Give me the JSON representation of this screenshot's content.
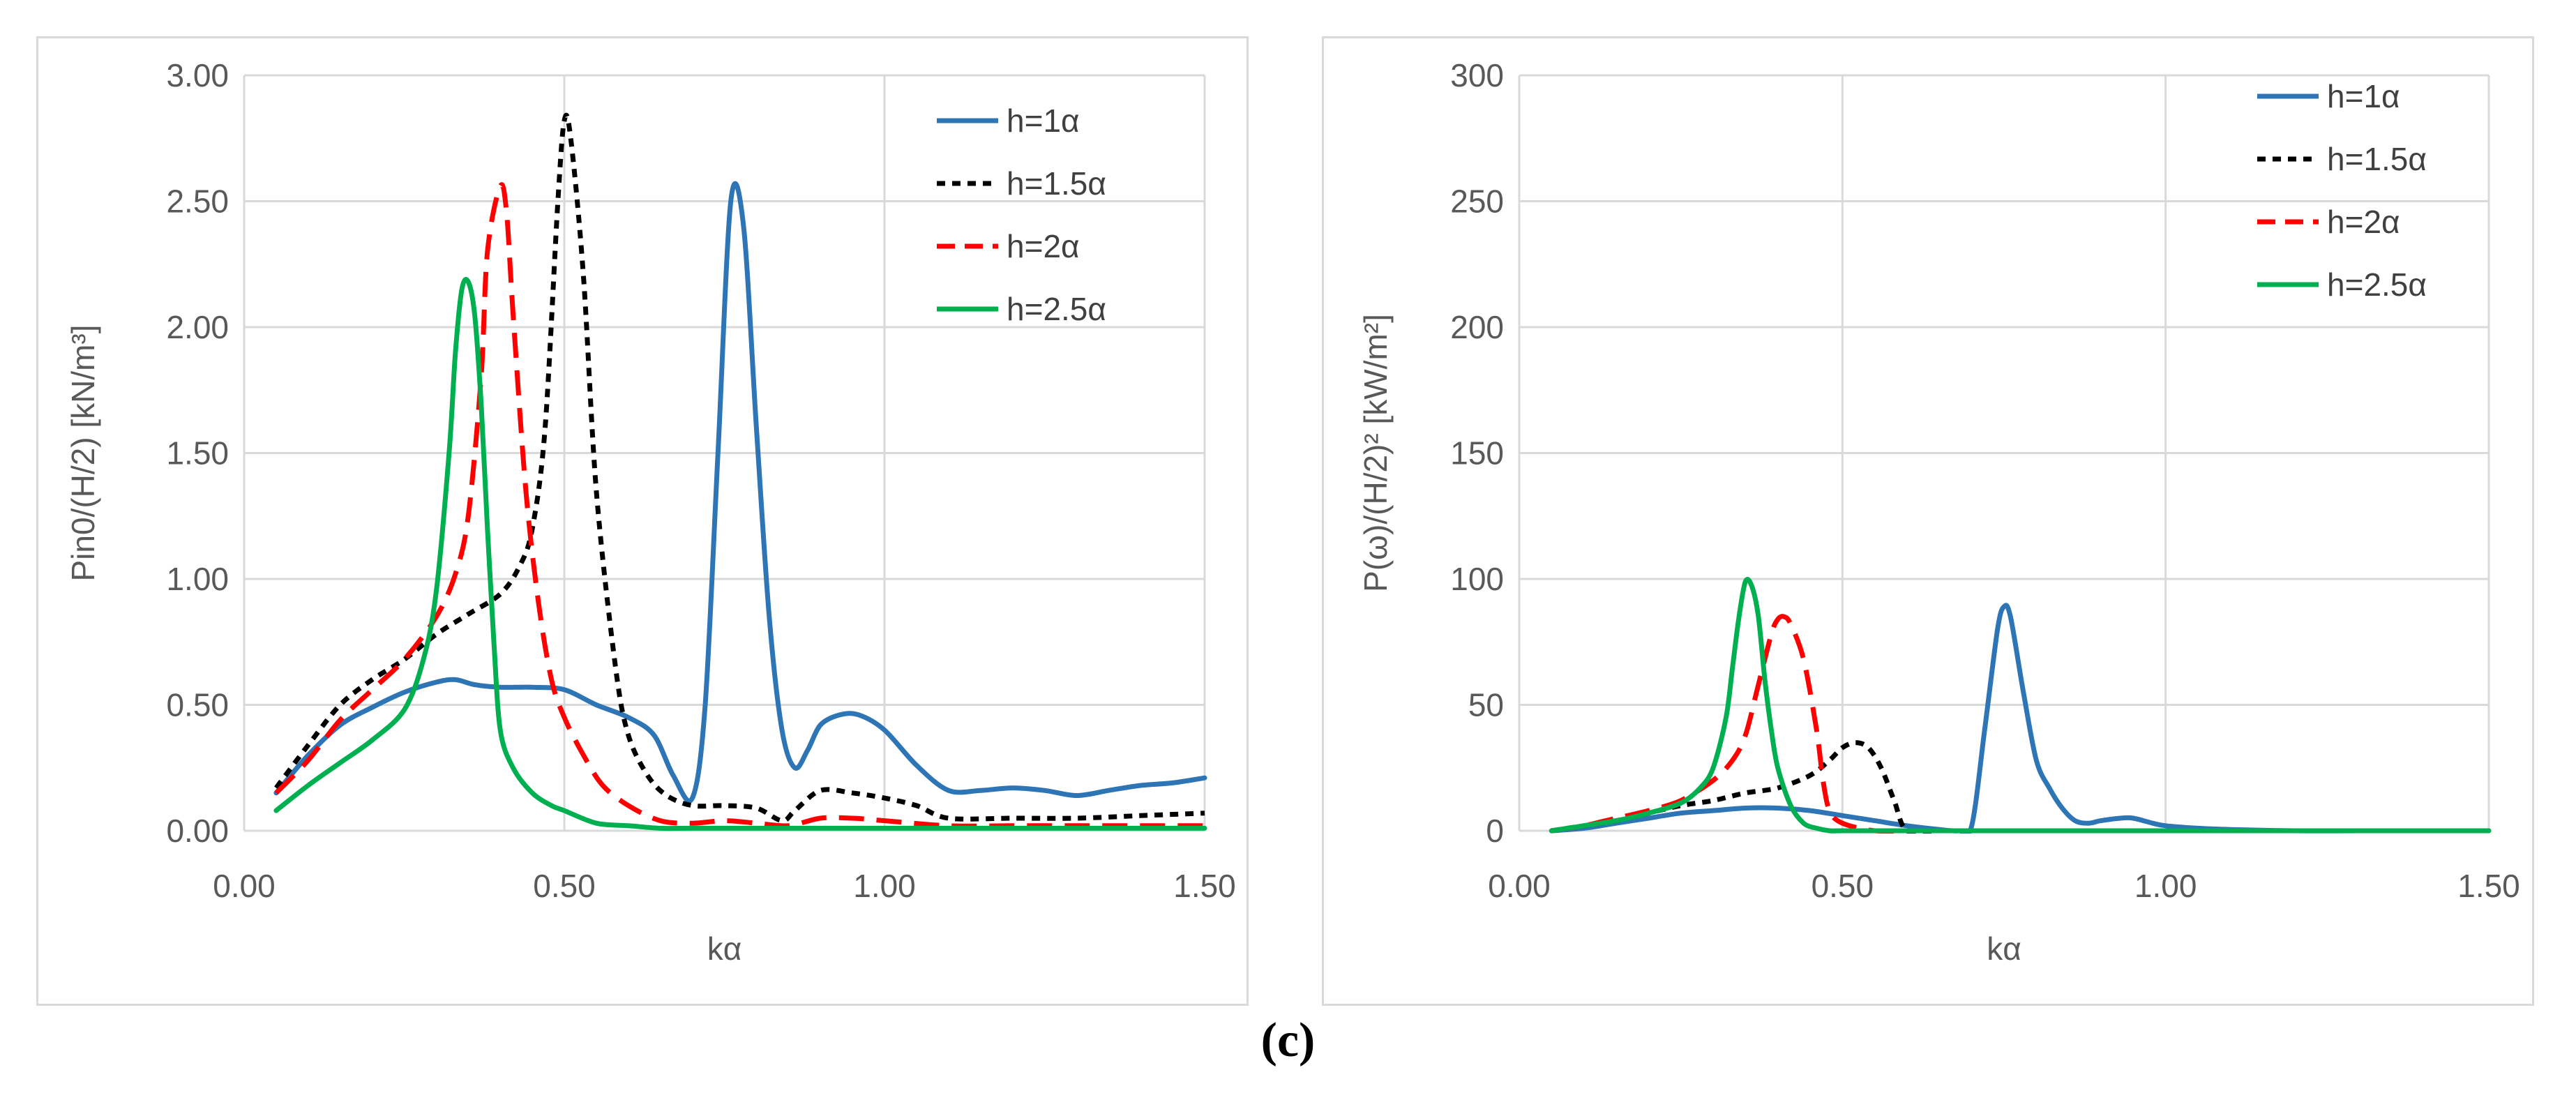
{
  "caption": "(c)",
  "colors": {
    "h1": "#2E75B6",
    "h15": "#000000",
    "h2": "#FF0000",
    "h25": "#00B050",
    "grid": "#d9d9d9",
    "text": "#595959"
  },
  "chart_data": [
    {
      "type": "line",
      "title": "",
      "xlabel": "kα",
      "ylabel": "Pin0/(H/2)  [kN/m³]",
      "xlim": [
        0,
        1.5
      ],
      "ylim": [
        0,
        3
      ],
      "x_ticks": [
        "0.00",
        "0.50",
        "1.00",
        "1.50"
      ],
      "y_ticks": [
        "0.00",
        "0.50",
        "1.00",
        "1.50",
        "2.00",
        "2.50",
        "3.00"
      ],
      "legend_position": "top-right",
      "series": [
        {
          "name": "h=1α",
          "style": "solid",
          "color": "#2E75B6",
          "x": [
            0.05,
            0.1,
            0.15,
            0.2,
            0.25,
            0.3,
            0.33,
            0.36,
            0.4,
            0.45,
            0.5,
            0.55,
            0.6,
            0.64,
            0.67,
            0.7,
            0.72,
            0.74,
            0.76,
            0.78,
            0.8,
            0.82,
            0.84,
            0.86,
            0.88,
            0.9,
            0.93,
            0.96,
            1.0,
            1.05,
            1.1,
            1.15,
            1.2,
            1.25,
            1.3,
            1.35,
            1.4,
            1.45,
            1.5
          ],
          "y": [
            0.15,
            0.3,
            0.42,
            0.49,
            0.55,
            0.59,
            0.6,
            0.58,
            0.57,
            0.57,
            0.56,
            0.5,
            0.45,
            0.38,
            0.22,
            0.13,
            0.5,
            1.5,
            2.5,
            2.4,
            1.6,
            0.85,
            0.4,
            0.25,
            0.32,
            0.42,
            0.46,
            0.46,
            0.4,
            0.26,
            0.16,
            0.16,
            0.17,
            0.16,
            0.14,
            0.16,
            0.18,
            0.19,
            0.21
          ]
        },
        {
          "name": "h=1.5α",
          "style": "dotted",
          "color": "#000000",
          "x": [
            0.05,
            0.1,
            0.15,
            0.2,
            0.25,
            0.3,
            0.35,
            0.4,
            0.43,
            0.45,
            0.47,
            0.49,
            0.5,
            0.51,
            0.53,
            0.55,
            0.58,
            0.6,
            0.63,
            0.66,
            0.7,
            0.75,
            0.8,
            0.84,
            0.86,
            0.9,
            0.95,
            1.0,
            1.05,
            1.1,
            1.2,
            1.3,
            1.4,
            1.5
          ],
          "y": [
            0.17,
            0.34,
            0.5,
            0.6,
            0.68,
            0.78,
            0.86,
            0.94,
            1.05,
            1.2,
            1.6,
            2.5,
            2.82,
            2.75,
            2.2,
            1.35,
            0.65,
            0.38,
            0.22,
            0.14,
            0.1,
            0.1,
            0.09,
            0.04,
            0.08,
            0.16,
            0.15,
            0.13,
            0.1,
            0.05,
            0.05,
            0.05,
            0.06,
            0.07
          ]
        },
        {
          "name": "h=2α",
          "style": "dashed",
          "color": "#FF0000",
          "x": [
            0.05,
            0.1,
            0.15,
            0.2,
            0.25,
            0.3,
            0.33,
            0.35,
            0.37,
            0.38,
            0.4,
            0.41,
            0.42,
            0.44,
            0.46,
            0.48,
            0.5,
            0.53,
            0.56,
            0.6,
            0.65,
            0.7,
            0.75,
            0.8,
            0.85,
            0.9,
            0.95,
            1.0,
            1.1,
            1.2,
            1.3,
            1.4,
            1.5
          ],
          "y": [
            0.15,
            0.28,
            0.44,
            0.56,
            0.68,
            0.85,
            1.02,
            1.25,
            1.8,
            2.3,
            2.56,
            2.45,
            2.05,
            1.35,
            0.9,
            0.6,
            0.45,
            0.3,
            0.18,
            0.1,
            0.04,
            0.03,
            0.04,
            0.03,
            0.02,
            0.05,
            0.05,
            0.04,
            0.02,
            0.02,
            0.02,
            0.02,
            0.02
          ]
        },
        {
          "name": "h=2.5α",
          "style": "solid",
          "color": "#00B050",
          "x": [
            0.05,
            0.1,
            0.15,
            0.2,
            0.25,
            0.28,
            0.3,
            0.32,
            0.33,
            0.34,
            0.35,
            0.36,
            0.37,
            0.38,
            0.39,
            0.4,
            0.42,
            0.45,
            0.48,
            0.5,
            0.55,
            0.6,
            0.65,
            0.7,
            0.8,
            0.9,
            1.0,
            1.1,
            1.2,
            1.3,
            1.4,
            1.5
          ],
          "y": [
            0.08,
            0.18,
            0.27,
            0.36,
            0.48,
            0.68,
            0.95,
            1.5,
            1.9,
            2.15,
            2.18,
            2.05,
            1.7,
            1.2,
            0.75,
            0.4,
            0.25,
            0.15,
            0.1,
            0.08,
            0.03,
            0.02,
            0.01,
            0.01,
            0.01,
            0.01,
            0.01,
            0.01,
            0.01,
            0.01,
            0.01,
            0.01
          ]
        }
      ]
    },
    {
      "type": "line",
      "title": "",
      "xlabel": "kα",
      "ylabel": "P(ω)/(H/2)²  [kW/m²]",
      "xlim": [
        0,
        1.5
      ],
      "ylim": [
        0,
        300
      ],
      "x_ticks": [
        "0.00",
        "0.50",
        "1.00",
        "1.50"
      ],
      "y_ticks": [
        "0",
        "50",
        "100",
        "150",
        "200",
        "250",
        "300"
      ],
      "legend_position": "top-right",
      "series": [
        {
          "name": "h=1α",
          "style": "solid",
          "color": "#2E75B6",
          "x": [
            0.05,
            0.1,
            0.15,
            0.2,
            0.25,
            0.3,
            0.35,
            0.4,
            0.45,
            0.5,
            0.55,
            0.6,
            0.65,
            0.68,
            0.7,
            0.72,
            0.74,
            0.75,
            0.76,
            0.78,
            0.8,
            0.82,
            0.84,
            0.86,
            0.88,
            0.9,
            0.93,
            0.95,
            0.98,
            1.0,
            1.05,
            1.1,
            1.2,
            1.3,
            1.4,
            1.5
          ],
          "y": [
            0,
            1,
            3,
            5,
            7,
            8,
            9,
            9,
            8,
            6,
            4,
            2,
            0.5,
            0,
            2,
            40,
            80,
            89,
            85,
            55,
            28,
            17,
            9,
            4,
            3,
            4,
            5,
            5,
            3,
            2,
            1,
            0.5,
            0,
            0,
            0,
            0
          ]
        },
        {
          "name": "h=1.5α",
          "style": "dotted",
          "color": "#000000",
          "x": [
            0.05,
            0.1,
            0.15,
            0.2,
            0.25,
            0.3,
            0.35,
            0.4,
            0.45,
            0.48,
            0.5,
            0.52,
            0.54,
            0.56,
            0.58,
            0.6,
            0.65,
            0.7,
            0.8,
            0.9,
            1.0,
            1.1,
            1.2,
            1.3,
            1.4,
            1.5
          ],
          "y": [
            0,
            2,
            4,
            7,
            10,
            12,
            15,
            17,
            22,
            28,
            33,
            35,
            33,
            25,
            12,
            0,
            0,
            0,
            0,
            0,
            0,
            0,
            0,
            0,
            0,
            0
          ]
        },
        {
          "name": "h=2α",
          "style": "dashed",
          "color": "#FF0000",
          "x": [
            0.05,
            0.1,
            0.15,
            0.2,
            0.25,
            0.3,
            0.33,
            0.35,
            0.37,
            0.39,
            0.4,
            0.41,
            0.42,
            0.44,
            0.46,
            0.47,
            0.48,
            0.5,
            0.55,
            0.6,
            0.65,
            0.7,
            0.8,
            0.9,
            1.0,
            1.1,
            1.2,
            1.3,
            1.4,
            1.5
          ],
          "y": [
            0,
            2,
            5,
            8,
            12,
            20,
            28,
            38,
            58,
            78,
            84,
            85,
            82,
            68,
            40,
            20,
            8,
            3,
            0,
            0,
            0,
            0,
            0,
            0,
            0,
            0,
            0,
            0,
            0,
            0
          ]
        },
        {
          "name": "h=2.5α",
          "style": "solid",
          "color": "#00B050",
          "x": [
            0.05,
            0.1,
            0.15,
            0.2,
            0.25,
            0.28,
            0.3,
            0.32,
            0.33,
            0.34,
            0.35,
            0.36,
            0.37,
            0.38,
            0.39,
            0.4,
            0.42,
            0.44,
            0.46,
            0.48,
            0.5,
            0.55,
            0.6,
            0.7,
            0.8,
            0.9,
            1.0,
            1.1,
            1.2,
            1.3,
            1.4,
            1.5
          ],
          "y": [
            0,
            2,
            4,
            7,
            11,
            17,
            25,
            45,
            65,
            85,
            99,
            97,
            85,
            60,
            40,
            25,
            10,
            3,
            1,
            0,
            0,
            0,
            0,
            0,
            0,
            0,
            0,
            0,
            0,
            0,
            0,
            0
          ]
        }
      ]
    }
  ]
}
